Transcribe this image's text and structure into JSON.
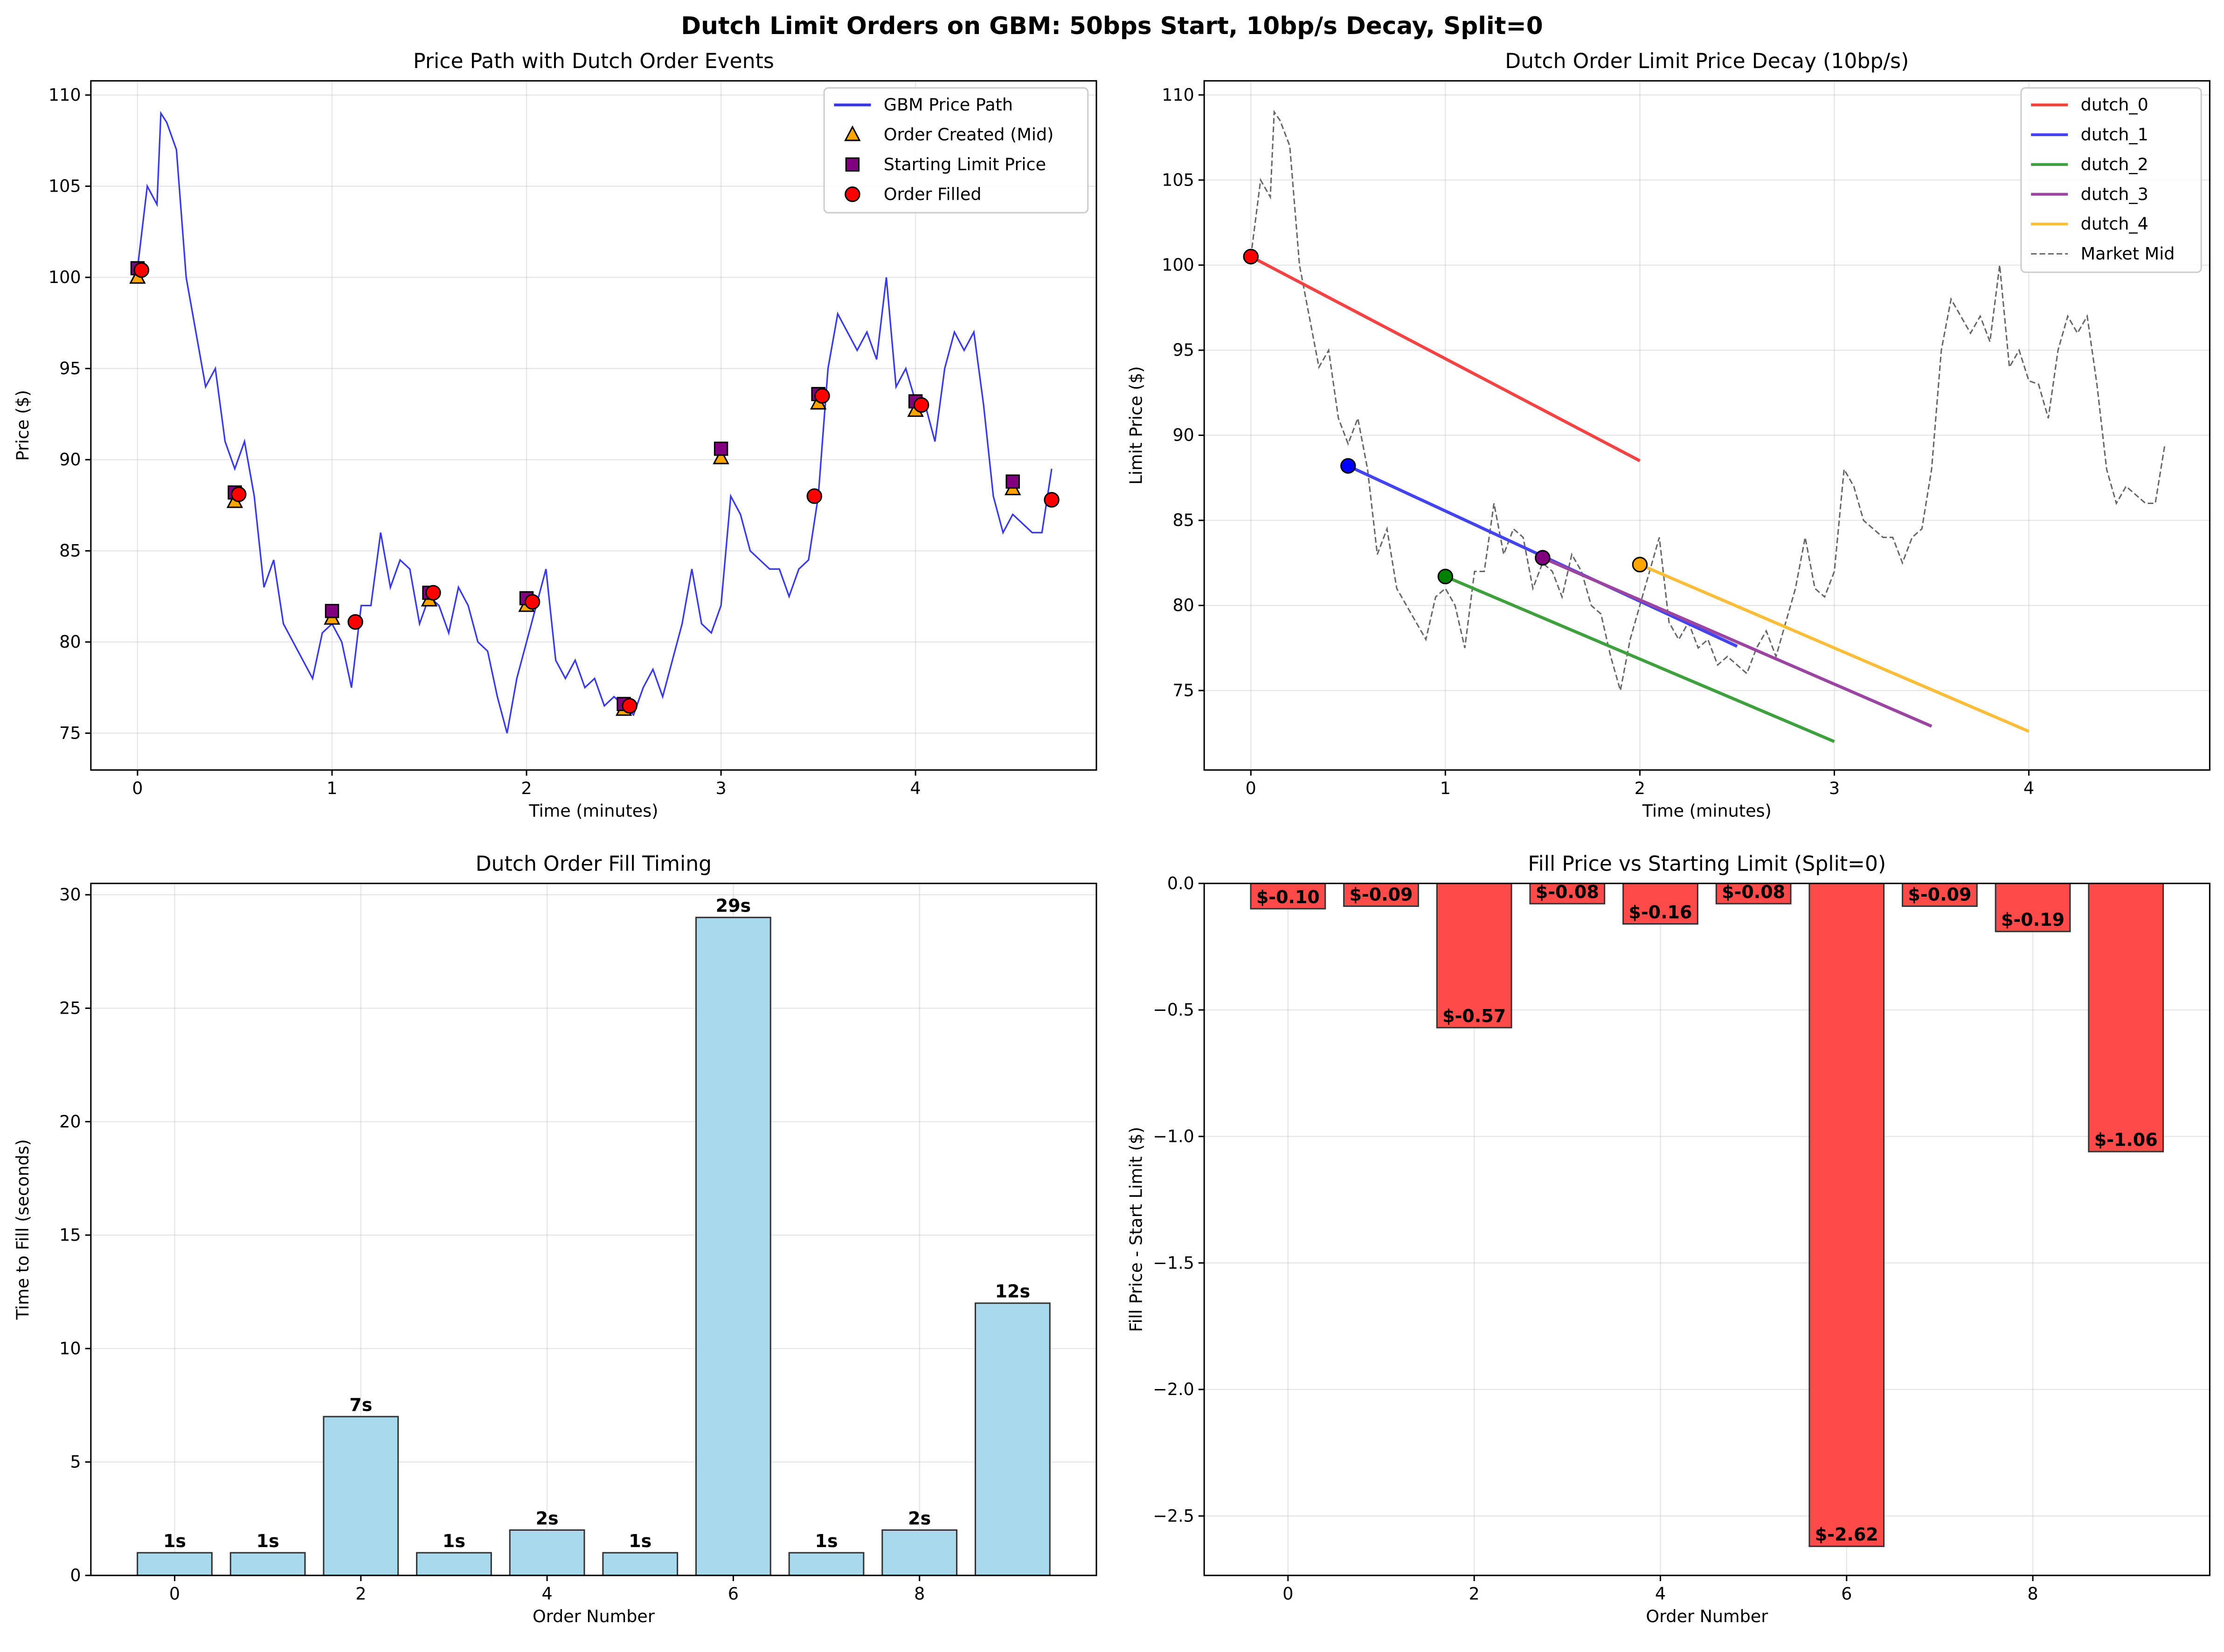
{
  "title": "Dutch Limit Orders on GBM: 50bps Start, 10bp/s Decay, Split=0",
  "chart_data": [
    {
      "type": "line",
      "title": "Price Path with Dutch Order Events",
      "xlabel": "Time (minutes)",
      "ylabel": "Price ($)",
      "xlim": [
        -0.24,
        4.93
      ],
      "ylim": [
        72.98,
        110.78
      ],
      "xticks": [
        0,
        1,
        2,
        3,
        4
      ],
      "yticks": [
        75,
        80,
        85,
        90,
        95,
        100,
        105,
        110
      ],
      "grid": true,
      "legend": "upper right",
      "series": [
        {
          "name": "GBM Price Path",
          "color": "#3b3be6",
          "style": "line",
          "x": [
            0,
            0.05,
            0.1,
            0.12,
            0.15,
            0.2,
            0.25,
            0.3,
            0.35,
            0.4,
            0.45,
            0.5,
            0.55,
            0.6,
            0.65,
            0.7,
            0.75,
            0.8,
            0.85,
            0.9,
            0.95,
            1.0,
            1.05,
            1.1,
            1.15,
            1.2,
            1.25,
            1.3,
            1.35,
            1.4,
            1.45,
            1.5,
            1.55,
            1.6,
            1.65,
            1.7,
            1.75,
            1.8,
            1.85,
            1.9,
            1.95,
            2.0,
            2.05,
            2.1,
            2.15,
            2.2,
            2.25,
            2.3,
            2.35,
            2.4,
            2.45,
            2.5,
            2.55,
            2.6,
            2.65,
            2.7,
            2.75,
            2.8,
            2.85,
            2.9,
            2.95,
            3.0,
            3.05,
            3.1,
            3.15,
            3.2,
            3.25,
            3.3,
            3.35,
            3.4,
            3.45,
            3.5,
            3.55,
            3.6,
            3.65,
            3.7,
            3.75,
            3.8,
            3.85,
            3.9,
            3.95,
            4.0,
            4.05,
            4.1,
            4.15,
            4.2,
            4.25,
            4.3,
            4.35,
            4.4,
            4.45,
            4.5,
            4.55,
            4.6,
            4.65,
            4.7
          ],
          "values": [
            100.5,
            105,
            104,
            109,
            108.5,
            107,
            100,
            97,
            94,
            95,
            91,
            89.5,
            91,
            88,
            83,
            84.5,
            81,
            80,
            79,
            78,
            80.5,
            81,
            80,
            77.5,
            82,
            82,
            86,
            83,
            84.5,
            84,
            81,
            82.5,
            82,
            80.5,
            83,
            82,
            80,
            79.5,
            77,
            75,
            78,
            80,
            82,
            84,
            79,
            78,
            79,
            77.5,
            78,
            76.5,
            77,
            76.5,
            76,
            77.5,
            78.5,
            77,
            79,
            81,
            84,
            81,
            80.5,
            82,
            88,
            87,
            85,
            84.5,
            84,
            84,
            82.5,
            84,
            84.5,
            88,
            95,
            98,
            97,
            96,
            97,
            95.5,
            100,
            94,
            95,
            93.2,
            93,
            91,
            95,
            97,
            96,
            97,
            93,
            88,
            86,
            87,
            86.5,
            86,
            86,
            89.5
          ]
        },
        {
          "name": "Order Created (Mid)",
          "color": "#ffa500",
          "style": "scatter",
          "marker": "triangle",
          "x": [
            0,
            0.5,
            1,
            1.5,
            2,
            2.5,
            3,
            3.5,
            4,
            4.5
          ],
          "values": [
            100,
            87.7,
            81.3,
            82.3,
            82,
            76.3,
            90.1,
            93.1,
            92.7,
            88.4
          ]
        },
        {
          "name": "Starting Limit Price",
          "color": "#800080",
          "style": "scatter",
          "marker": "square",
          "x": [
            0,
            0.5,
            1,
            1.5,
            2,
            2.5,
            3,
            3.5,
            4,
            4.5
          ],
          "values": [
            100.5,
            88.2,
            81.7,
            82.7,
            82.4,
            76.6,
            90.6,
            93.6,
            93.2,
            88.8
          ]
        },
        {
          "name": "Order Filled",
          "color": "#ff0000",
          "style": "scatter",
          "marker": "circle",
          "x": [
            0.02,
            0.52,
            1.12,
            1.52,
            2.03,
            2.53,
            3.48,
            3.52,
            4.03,
            4.7
          ],
          "values": [
            100.4,
            88.1,
            81.1,
            82.7,
            82.2,
            76.5,
            88,
            93.5,
            93,
            87.8
          ]
        }
      ]
    },
    {
      "type": "line",
      "title": "Dutch Order Limit Price Decay (10bp/s)",
      "xlabel": "Time (minutes)",
      "ylabel": "Limit Price ($)",
      "xlim": [
        -0.24,
        4.93
      ],
      "ylim": [
        70.33,
        110.83
      ],
      "xticks": [
        0,
        1,
        2,
        3,
        4
      ],
      "yticks": [
        75,
        80,
        85,
        90,
        95,
        100,
        105,
        110
      ],
      "grid": true,
      "legend": "upper right",
      "series": [
        {
          "name": "dutch_0",
          "color": "#f24444",
          "marker_color": "#ff0000",
          "style": "line",
          "start_marker": true,
          "x": [
            0,
            2
          ],
          "values": [
            100.5,
            88.5
          ]
        },
        {
          "name": "dutch_1",
          "color": "#4444ee",
          "marker_color": "#0000ff",
          "style": "line",
          "start_marker": true,
          "x": [
            0.5,
            2.5
          ],
          "values": [
            88.2,
            77.6
          ]
        },
        {
          "name": "dutch_2",
          "color": "#40a040",
          "marker_color": "#008000",
          "style": "line",
          "start_marker": true,
          "x": [
            1,
            3
          ],
          "values": [
            81.7,
            72
          ]
        },
        {
          "name": "dutch_3",
          "color": "#9a45a0",
          "marker_color": "#800080",
          "style": "line",
          "start_marker": true,
          "x": [
            1.5,
            3.5
          ],
          "values": [
            82.8,
            72.9
          ]
        },
        {
          "name": "dutch_4",
          "color": "#fbbd3c",
          "marker_color": "#ffa500",
          "style": "line",
          "start_marker": true,
          "x": [
            2,
            4
          ],
          "values": [
            82.4,
            72.6
          ]
        },
        {
          "name": "Market Mid",
          "color": "#666666",
          "style": "line",
          "dash": true,
          "x": [
            0,
            0.05,
            0.1,
            0.12,
            0.15,
            0.2,
            0.25,
            0.3,
            0.35,
            0.4,
            0.45,
            0.5,
            0.55,
            0.6,
            0.65,
            0.7,
            0.75,
            0.8,
            0.85,
            0.9,
            0.95,
            1.0,
            1.05,
            1.1,
            1.15,
            1.2,
            1.25,
            1.3,
            1.35,
            1.4,
            1.45,
            1.5,
            1.55,
            1.6,
            1.65,
            1.7,
            1.75,
            1.8,
            1.85,
            1.9,
            1.95,
            2.0,
            2.05,
            2.1,
            2.15,
            2.2,
            2.25,
            2.3,
            2.35,
            2.4,
            2.45,
            2.5,
            2.55,
            2.6,
            2.65,
            2.7,
            2.75,
            2.8,
            2.85,
            2.9,
            2.95,
            3.0,
            3.05,
            3.1,
            3.15,
            3.2,
            3.25,
            3.3,
            3.35,
            3.4,
            3.45,
            3.5,
            3.55,
            3.6,
            3.65,
            3.7,
            3.75,
            3.8,
            3.85,
            3.9,
            3.95,
            4.0,
            4.05,
            4.1,
            4.15,
            4.2,
            4.25,
            4.3,
            4.35,
            4.4,
            4.45,
            4.5,
            4.55,
            4.6,
            4.65,
            4.7
          ],
          "values": [
            100.5,
            105,
            104,
            109,
            108.5,
            107,
            100,
            97,
            94,
            95,
            91,
            89.5,
            91,
            88,
            83,
            84.5,
            81,
            80,
            79,
            78,
            80.5,
            81,
            80,
            77.5,
            82,
            82,
            86,
            83,
            84.5,
            84,
            81,
            82.5,
            82,
            80.5,
            83,
            82,
            80,
            79.5,
            77,
            75,
            78,
            80,
            82,
            84,
            79,
            78,
            79,
            77.5,
            78,
            76.5,
            77,
            76.5,
            76,
            77.5,
            78.5,
            77,
            79,
            81,
            84,
            81,
            80.5,
            82,
            88,
            87,
            85,
            84.5,
            84,
            84,
            82.5,
            84,
            84.5,
            88,
            95,
            98,
            97,
            96,
            97,
            95.5,
            100,
            94,
            95,
            93.2,
            93,
            91,
            95,
            97,
            96,
            97,
            93,
            88,
            86,
            87,
            86.5,
            86,
            86,
            89.5
          ]
        }
      ]
    },
    {
      "type": "bar",
      "title": "Dutch Order Fill Timing",
      "xlabel": "Order Number",
      "ylabel": "Time to Fill (seconds)",
      "xlim": [
        -0.9,
        9.9
      ],
      "ylim": [
        0,
        30.5
      ],
      "xticks": [
        0,
        2,
        4,
        6,
        8
      ],
      "yticks": [
        0,
        5,
        10,
        15,
        20,
        25,
        30
      ],
      "grid": true,
      "color": "#a8d9ec",
      "x": [
        0,
        1,
        2,
        3,
        4,
        5,
        6,
        7,
        8,
        9
      ],
      "values": [
        1,
        1,
        7,
        1,
        2,
        1,
        29,
        1,
        2,
        12
      ],
      "value_labels": [
        "1s",
        "1s",
        "7s",
        "1s",
        "2s",
        "1s",
        "29s",
        "1s",
        "2s",
        "12s"
      ]
    },
    {
      "type": "bar",
      "title": "Fill Price vs Starting Limit (Split=0)",
      "xlabel": "Order Number",
      "ylabel": "Fill Price - Start Limit ($)",
      "xlim": [
        -0.9,
        9.9
      ],
      "ylim": [
        -2.735,
        0
      ],
      "xticks": [
        0,
        2,
        4,
        6,
        8
      ],
      "yticks": [
        {
          "value": 0,
          "label": "0.0"
        },
        {
          "value": -0.5,
          "label": "−0.5"
        },
        {
          "value": -1,
          "label": "−1.0"
        },
        {
          "value": -1.5,
          "label": "−1.5"
        },
        {
          "value": -2,
          "label": "−2.0"
        },
        {
          "value": -2.5,
          "label": "−2.5"
        }
      ],
      "grid": true,
      "color": "#ff4a4a",
      "x": [
        0,
        1,
        2,
        3,
        4,
        5,
        6,
        7,
        8,
        9
      ],
      "values": [
        -0.1,
        -0.09,
        -0.57,
        -0.08,
        -0.16,
        -0.08,
        -2.62,
        -0.09,
        -0.19,
        -1.06
      ],
      "value_labels": [
        "$-0.10",
        "$-0.09",
        "$-0.57",
        "$-0.08",
        "$-0.16",
        "$-0.08",
        "$-2.62",
        "$-0.09",
        "$-0.19",
        "$-1.06"
      ]
    }
  ]
}
